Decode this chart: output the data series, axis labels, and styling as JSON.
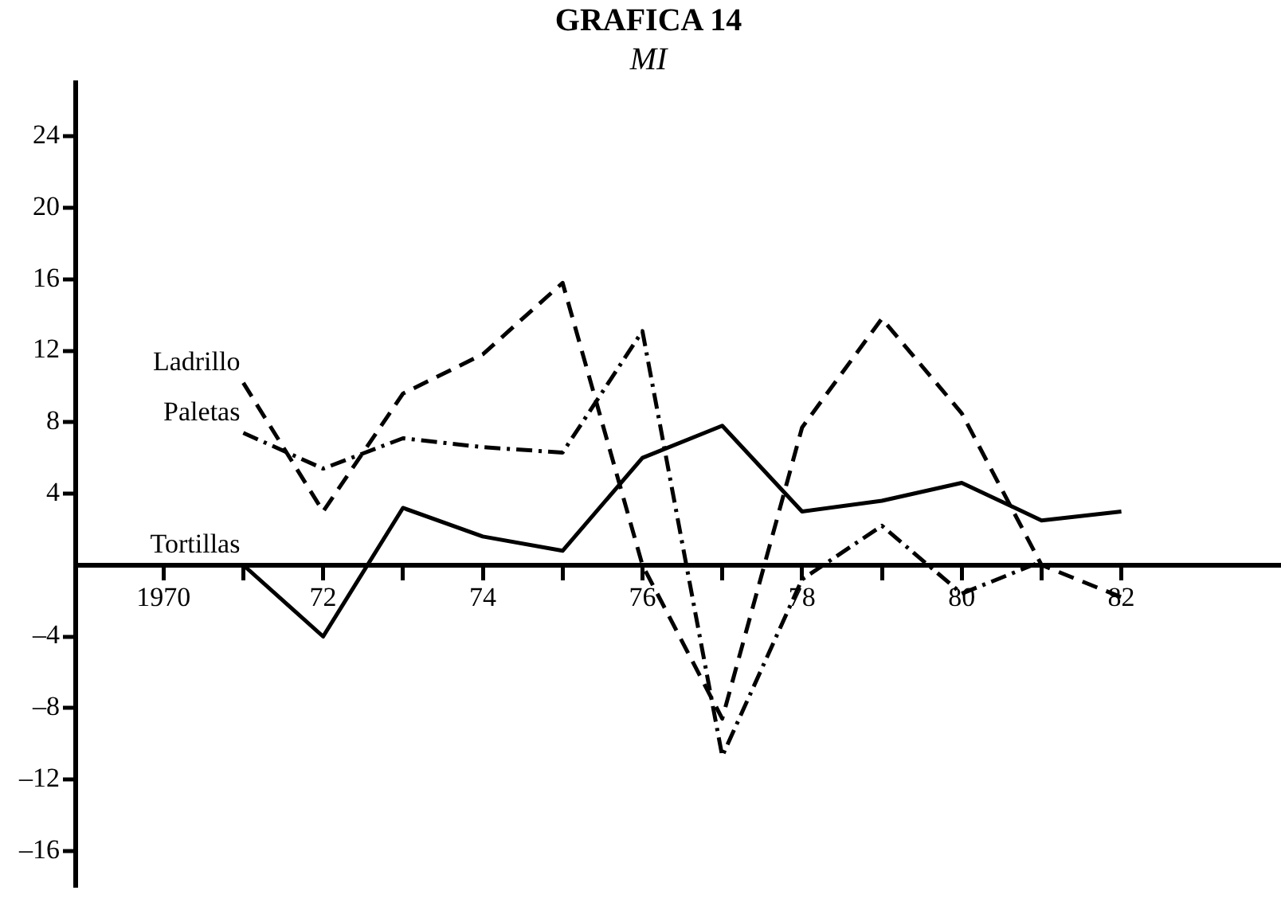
{
  "chart_data": {
    "type": "line",
    "title": "GRAFICA 14",
    "subtitle": "MI",
    "xlim": [
      1968.9,
      1984
    ],
    "xticks": [
      1970,
      {
        "value": 1971,
        "label": null
      },
      {
        "value": 1972,
        "label": "72"
      },
      {
        "value": 1973,
        "label": null
      },
      {
        "value": 1974,
        "label": "74"
      },
      {
        "value": 1975,
        "label": null
      },
      {
        "value": 1976,
        "label": "76"
      },
      {
        "value": 1977,
        "label": null
      },
      {
        "value": 1978,
        "label": "78"
      },
      {
        "value": 1979,
        "label": null
      },
      {
        "value": 1980,
        "label": "80"
      },
      {
        "value": 1981,
        "label": null
      },
      {
        "value": 1982,
        "label": "82"
      }
    ],
    "ylim": [
      -18,
      27
    ],
    "yticks": [
      {
        "value": -16,
        "label": "–16"
      },
      {
        "value": -12,
        "label": "–12"
      },
      {
        "value": -8,
        "label": "–8"
      },
      {
        "value": -4,
        "label": "–4"
      },
      4,
      8,
      12,
      16,
      20,
      24
    ],
    "grid": false,
    "legend": false,
    "marker": "none",
    "series": [
      {
        "name": "Ladrillo",
        "color": "#000000",
        "line_style": "dashed",
        "x": [
          1971,
          1972,
          1973,
          1974,
          1975,
          1976,
          1977,
          1978,
          1979,
          1980,
          1981,
          1982
        ],
        "values": [
          10.2,
          3,
          9.6,
          11.8,
          15.8,
          0,
          -8.6,
          7.7,
          13.8,
          8.5,
          0,
          -1.8
        ]
      },
      {
        "name": "Paletas",
        "color": "#000000",
        "line_style": "dashdot",
        "x": [
          1971,
          1972,
          1973,
          1974,
          1975,
          1976,
          1977,
          1978,
          1979,
          1980,
          1981
        ],
        "values": [
          7.4,
          5.4,
          7.1,
          6.6,
          6.3,
          13.1,
          -10.7,
          -0.8,
          2.2,
          -1.6,
          0.2
        ]
      },
      {
        "name": "Tortillas",
        "color": "#000000",
        "line_style": "solid",
        "x": [
          1971,
          1972,
          1973,
          1974,
          1975,
          1976,
          1977,
          1978,
          1979,
          1980,
          1981,
          1982
        ],
        "values": [
          0,
          -4,
          3.2,
          1.6,
          0.8,
          6,
          7.8,
          3,
          3.6,
          4.6,
          2.5,
          3
        ]
      }
    ]
  }
}
